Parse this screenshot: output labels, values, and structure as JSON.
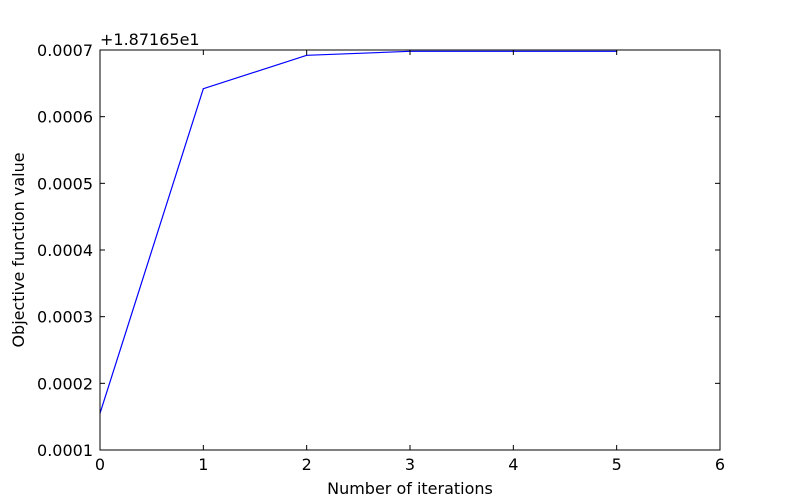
{
  "chart_data": {
    "type": "line",
    "title": "",
    "xlabel": "Number of iterations",
    "ylabel": "Objective function value",
    "offset_text": "+1.87165e1",
    "xlim": [
      0,
      6
    ],
    "ylim": [
      0.0001,
      0.0007
    ],
    "x_ticks": [
      0,
      1,
      2,
      3,
      4,
      5,
      6
    ],
    "x_tick_labels": [
      "0",
      "1",
      "2",
      "3",
      "4",
      "5",
      "6"
    ],
    "y_ticks": [
      0.0001,
      0.0002,
      0.0003,
      0.0004,
      0.0005,
      0.0006,
      0.0007
    ],
    "y_tick_labels": [
      "0.0001",
      "0.0002",
      "0.0003",
      "0.0004",
      "0.0005",
      "0.0006",
      "0.0007"
    ],
    "grid": false,
    "series": [
      {
        "color": "#0000ff",
        "x": [
          0,
          1,
          2,
          3,
          4,
          5
        ],
        "y": [
          0.000155,
          0.000642,
          0.000692,
          0.000698,
          0.000698,
          0.000698
        ]
      }
    ]
  }
}
